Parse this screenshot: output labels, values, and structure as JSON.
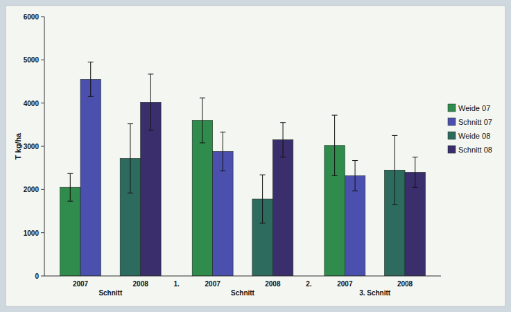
{
  "chart_data": {
    "type": "bar",
    "y_label": "T kg/ha",
    "categories": [
      "2007",
      "2008",
      "2007",
      "2008",
      "2007",
      "2008"
    ],
    "group_labels": [
      "Schnitt",
      "1.",
      "Schnitt",
      "2.",
      "3. Schnitt"
    ],
    "series": [
      {
        "name": "Weide 07",
        "color": "#2f8c4c",
        "values": [
          2050,
          null,
          3600,
          null,
          3020,
          null
        ],
        "errors": [
          320,
          null,
          520,
          null,
          700,
          null
        ]
      },
      {
        "name": "Schnitt 07",
        "color": "#4b4fae",
        "values": [
          4550,
          null,
          2880,
          null,
          2320,
          null
        ],
        "errors": [
          400,
          null,
          450,
          null,
          350,
          null
        ]
      },
      {
        "name": "Weide 08",
        "color": "#2e6b5f",
        "values": [
          null,
          2720,
          null,
          1780,
          null,
          2450
        ],
        "errors": [
          null,
          800,
          null,
          560,
          null,
          800
        ]
      },
      {
        "name": "Schnitt 08",
        "color": "#3a2f6c",
        "values": [
          null,
          4020,
          null,
          3150,
          null,
          2400
        ],
        "errors": [
          null,
          650,
          null,
          400,
          null,
          350
        ]
      }
    ],
    "ylim": [
      0,
      6000
    ],
    "yticks": [
      0,
      1000,
      2000,
      3000,
      4000,
      5000,
      6000
    ],
    "grid": false,
    "legend": "right"
  }
}
